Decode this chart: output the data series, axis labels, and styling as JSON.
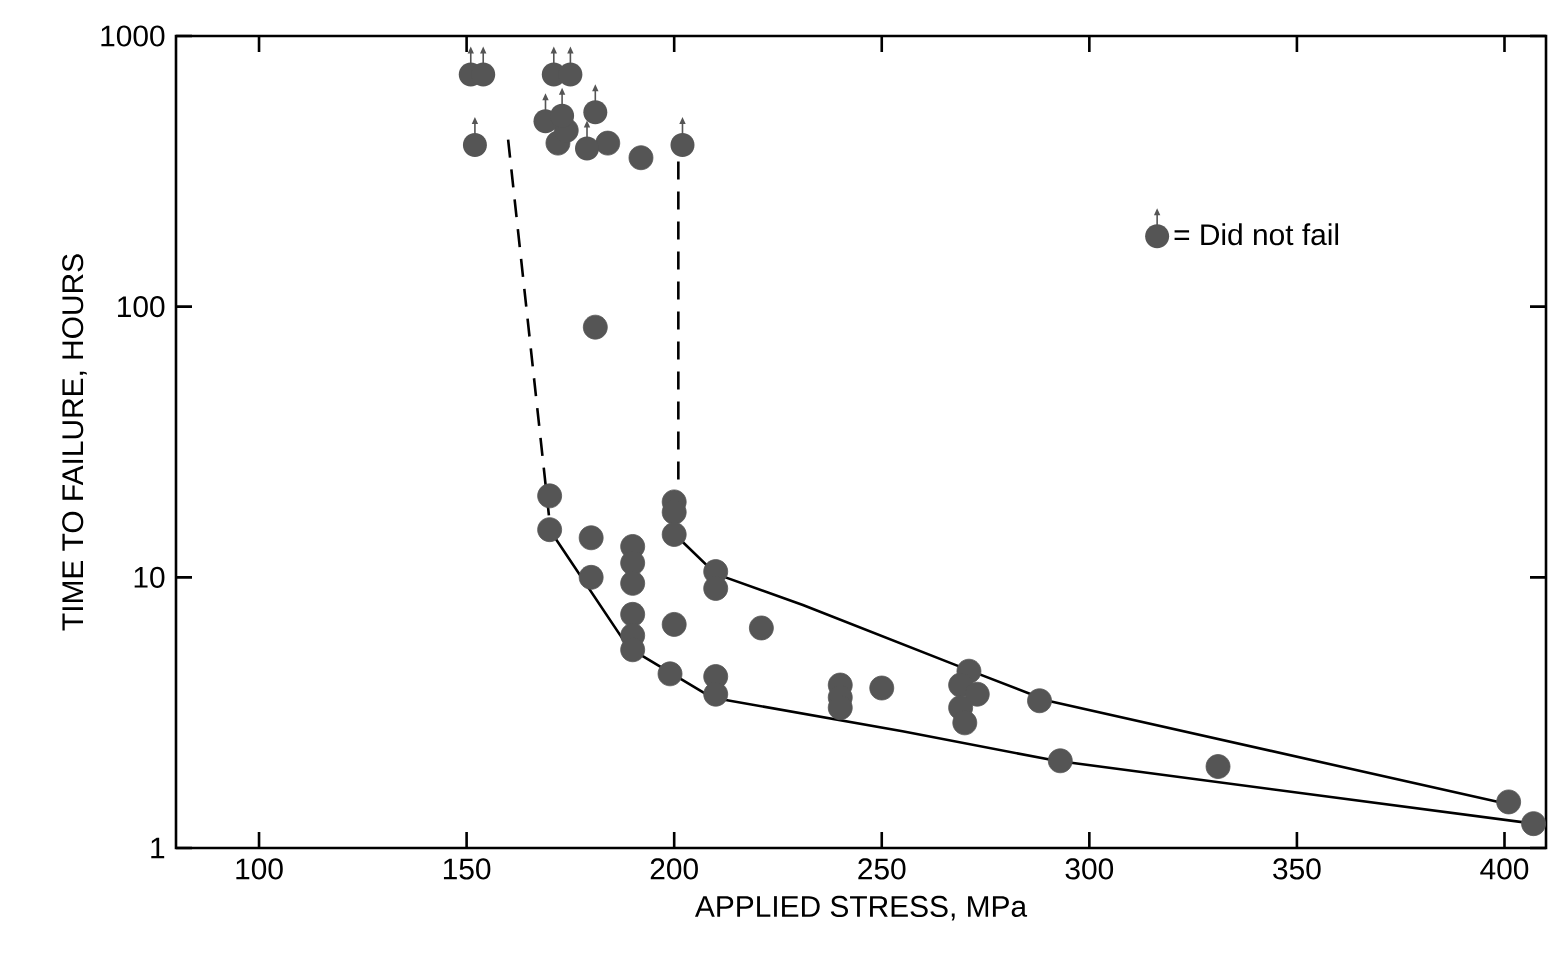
{
  "chart_data": {
    "type": "scatter",
    "xlabel": "APPLIED STRESS, MPa",
    "ylabel": "TIME TO FAILURE, HOURS",
    "xlim": [
      80,
      410
    ],
    "xticks": [
      100,
      150,
      200,
      250,
      300,
      350,
      400
    ],
    "ylim": [
      1,
      1000
    ],
    "yticks": [
      1,
      10,
      100,
      1000
    ],
    "log": "y",
    "grid": false,
    "legend": "right",
    "marker": "circle",
    "series": [
      {
        "color": "#555555",
        "x": [
          192,
          181,
          170,
          170,
          180,
          180,
          190,
          190,
          190,
          190,
          190,
          190,
          200,
          199,
          200,
          200,
          200,
          210,
          210,
          210,
          210,
          221,
          240,
          240,
          240,
          250,
          271,
          269,
          273,
          269,
          270,
          288,
          293,
          331,
          401,
          407,
          172,
          174,
          184
        ],
        "values": [
          355,
          84,
          20,
          15,
          14,
          10,
          13,
          11.3,
          9.5,
          7.3,
          6.1,
          5.4,
          6.7,
          4.4,
          19,
          17.4,
          14.4,
          10.5,
          9.1,
          4.3,
          3.7,
          6.5,
          4.0,
          3.6,
          3.3,
          3.9,
          4.5,
          4.0,
          3.7,
          3.3,
          2.9,
          3.5,
          2.1,
          2.0,
          1.48,
          1.23,
          402,
          448,
          402
        ]
      },
      {
        "name": "= Did not fail",
        "color": "#555555",
        "x": [
          151,
          154,
          152,
          171,
          175,
          169,
          173,
          181,
          179,
          202
        ],
        "values": [
          720,
          720,
          396,
          720,
          720,
          484,
          507,
          523,
          384,
          396
        ]
      },
      {
        "type": "line",
        "color": "#000000",
        "marker": "none",
        "line_style": "solid",
        "x": [
          201,
          210,
          231,
          270,
          290,
          401
        ],
        "values": [
          14,
          10.3,
          7.9,
          4.6,
          3.5,
          1.45
        ]
      },
      {
        "type": "line",
        "color": "#000000",
        "marker": "none",
        "line_style": "solid",
        "x": [
          170,
          189,
          209,
          255,
          292,
          407
        ],
        "values": [
          15,
          5.5,
          3.6,
          2.7,
          2.1,
          1.23
        ]
      },
      {
        "type": "line",
        "color": "#000000",
        "marker": "none",
        "line_style": "dashed",
        "x": [
          160,
          170
        ],
        "values": [
          414,
          16
        ]
      },
      {
        "type": "line",
        "color": "#000000",
        "marker": "none",
        "line_style": "dashed",
        "x": [
          201,
          201
        ],
        "values": [
          344,
          17
        ]
      }
    ]
  }
}
